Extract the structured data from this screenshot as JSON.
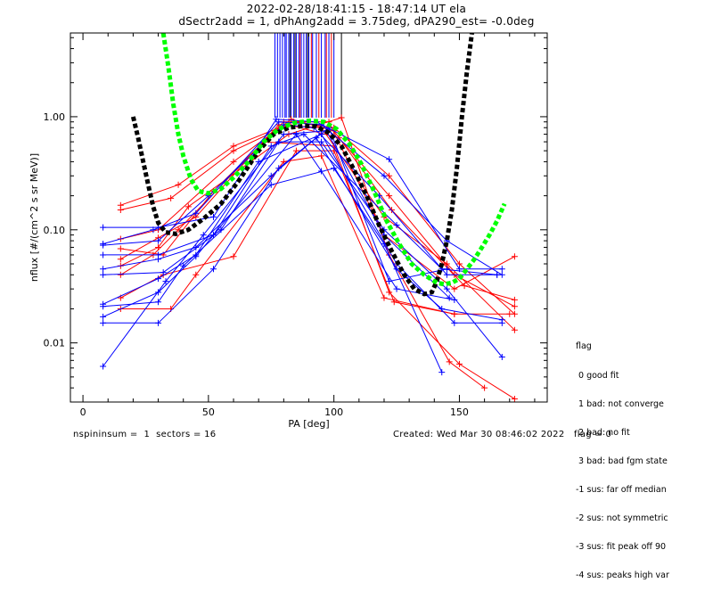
{
  "title_line1": "2022-02-28/18:41:15 - 18:47:14 UT ela",
  "title_line2": "dSectr2add = 1, dPhAng2add = 3.75deg, dPA290_est=  -0.0deg",
  "footer_left": "nspininsum =  1  sectors = 16",
  "footer_right": "Created: Wed Mar 30 08:46:02 2022   flag = 0",
  "legend": {
    "title": "flag",
    "items": [
      " 0 good fit",
      " 1 bad: not converge",
      " 2 bad: no fit",
      " 3 bad: bad fgm state",
      "-1 sus: far off median",
      "-2 sus: not symmetric",
      "-3 sus: fit peak off 90",
      "-4 sus: peaks high var"
    ]
  },
  "colors": {
    "red": "#ff0000",
    "blue": "#0000ff",
    "black": "#000000",
    "green": "#00ff00"
  },
  "chart_data": {
    "type": "line",
    "xlabel": "PA [deg]",
    "ylabel": "nflux [#/(cm^2 s sr MeV)]",
    "xlim": [
      -5,
      185
    ],
    "ylim": [
      0.003,
      5.5
    ],
    "yscale": "log",
    "x_ticks": [
      0,
      50,
      100,
      150
    ],
    "y_ticks": [
      0.01,
      0.1,
      1.0
    ],
    "y_tick_labels": [
      "0.01",
      "0.10",
      "1.00"
    ],
    "series": [
      {
        "color": "red",
        "x": [
          15,
          38,
          60,
          84,
          100,
          122,
          150,
          172
        ],
        "y": [
          0.165,
          0.25,
          0.55,
          0.9,
          0.8,
          0.3,
          0.05,
          0.018
        ]
      },
      {
        "color": "red",
        "x": [
          15,
          35,
          60,
          82,
          102,
          122,
          148,
          172
        ],
        "y": [
          0.15,
          0.19,
          0.5,
          0.85,
          0.65,
          0.2,
          0.04,
          0.021
        ]
      },
      {
        "color": "red",
        "x": [
          15,
          30,
          60,
          83,
          100,
          123,
          152,
          172
        ],
        "y": [
          0.083,
          0.1,
          0.4,
          0.95,
          0.75,
          0.15,
          0.032,
          0.024
        ]
      },
      {
        "color": "red",
        "x": [
          15,
          32,
          52,
          80,
          98,
          120,
          148,
          172
        ],
        "y": [
          0.068,
          0.06,
          0.22,
          0.9,
          0.9,
          0.09,
          0.03,
          0.058
        ]
      },
      {
        "color": "red",
        "x": [
          15,
          30,
          45,
          78,
          95,
          120,
          145,
          172
        ],
        "y": [
          0.055,
          0.085,
          0.13,
          0.85,
          0.8,
          0.13,
          0.05,
          0.013
        ]
      },
      {
        "color": "red",
        "x": [
          15,
          30,
          42,
          82,
          103,
          122,
          146,
          160
        ],
        "y": [
          0.048,
          0.07,
          0.16,
          0.7,
          0.98,
          0.06,
          0.0068,
          0.004
        ]
      },
      {
        "color": "red",
        "x": [
          15,
          28,
          38,
          72,
          100,
          122,
          150,
          172
        ],
        "y": [
          0.04,
          0.06,
          0.1,
          0.6,
          0.55,
          0.028,
          0.0065,
          0.0032
        ]
      },
      {
        "color": "red",
        "x": [
          15,
          32,
          60,
          85,
          100,
          124,
          148,
          170
        ],
        "y": [
          0.025,
          0.04,
          0.058,
          0.5,
          0.5,
          0.023,
          0.018,
          0.018
        ]
      },
      {
        "color": "red",
        "x": [
          15,
          35,
          45,
          80,
          95,
          120,
          148
        ],
        "y": [
          0.02,
          0.02,
          0.04,
          0.4,
          0.45,
          0.025,
          0.018
        ]
      },
      {
        "color": "blue",
        "x": [
          8,
          30,
          52,
          77,
          93,
          122,
          150,
          167
        ],
        "y": [
          0.105,
          0.105,
          0.13,
          0.95,
          0.9,
          0.42,
          0.045,
          0.045
        ]
      },
      {
        "color": "blue",
        "x": [
          8,
          28,
          45,
          78,
          95,
          120,
          145,
          167
        ],
        "y": [
          0.075,
          0.1,
          0.14,
          0.9,
          0.85,
          0.3,
          0.08,
          0.04
        ]
      },
      {
        "color": "blue",
        "x": [
          8,
          30,
          50,
          80,
          92,
          118,
          145,
          165
        ],
        "y": [
          0.073,
          0.08,
          0.2,
          0.85,
          0.8,
          0.2,
          0.04,
          0.04
        ]
      },
      {
        "color": "blue",
        "x": [
          8,
          30,
          52,
          75,
          88,
          125,
          143,
          165
        ],
        "y": [
          0.06,
          0.06,
          0.09,
          0.55,
          0.7,
          0.11,
          0.045,
          0.04
        ]
      },
      {
        "color": "blue",
        "x": [
          8,
          30,
          45,
          75,
          93,
          125,
          143,
          167
        ],
        "y": [
          0.045,
          0.055,
          0.07,
          0.3,
          0.65,
          0.045,
          0.02,
          0.016
        ]
      },
      {
        "color": "blue",
        "x": [
          8,
          32,
          55,
          78,
          95,
          120,
          145,
          167
        ],
        "y": [
          0.04,
          0.042,
          0.1,
          0.6,
          0.6,
          0.1,
          0.03,
          0.0075
        ]
      },
      {
        "color": "blue",
        "x": [
          8,
          30,
          45,
          70,
          95,
          125,
          148,
          167
        ],
        "y": [
          0.022,
          0.037,
          0.06,
          0.4,
          0.7,
          0.05,
          0.015,
          0.015
        ]
      },
      {
        "color": "blue",
        "x": [
          8,
          30,
          40,
          75,
          100,
          120,
          143
        ],
        "y": [
          0.021,
          0.023,
          0.048,
          0.25,
          0.35,
          0.075,
          0.0055
        ]
      },
      {
        "color": "blue",
        "x": [
          8,
          30,
          45,
          85,
          95,
          125,
          148
        ],
        "y": [
          0.017,
          0.028,
          0.058,
          0.7,
          0.33,
          0.03,
          0.024
        ]
      },
      {
        "color": "blue",
        "x": [
          8,
          30,
          52,
          78,
          98,
          122,
          145
        ],
        "y": [
          0.015,
          0.015,
          0.045,
          0.35,
          0.8,
          0.035,
          0.045
        ]
      },
      {
        "color": "blue",
        "x": [
          8,
          33,
          48,
          80,
          97,
          120,
          146
        ],
        "y": [
          0.0062,
          0.035,
          0.09,
          0.7,
          0.75,
          0.09,
          0.025
        ]
      }
    ],
    "fits": [
      {
        "color": "black",
        "x": [
          20,
          22,
          24,
          26,
          28,
          30,
          33,
          37,
          42,
          48,
          55,
          62,
          70,
          76,
          82,
          88,
          93,
          98,
          103,
          108,
          113,
          118,
          123,
          128,
          132,
          136,
          139,
          141,
          143,
          145,
          147,
          149,
          151,
          153,
          155
        ],
        "y": [
          1.0,
          0.65,
          0.4,
          0.25,
          0.16,
          0.115,
          0.095,
          0.092,
          0.1,
          0.125,
          0.17,
          0.27,
          0.5,
          0.7,
          0.8,
          0.83,
          0.82,
          0.72,
          0.55,
          0.34,
          0.2,
          0.11,
          0.065,
          0.04,
          0.03,
          0.027,
          0.028,
          0.035,
          0.05,
          0.08,
          0.15,
          0.35,
          1.0,
          2.5,
          5.5
        ]
      },
      {
        "color": "green",
        "x": [
          32,
          34,
          36,
          38,
          40,
          43,
          46,
          50,
          55,
          60,
          66,
          72,
          78,
          84,
          90,
          96,
          101,
          106,
          111,
          116,
          121,
          126,
          131,
          136,
          141,
          144,
          147,
          150,
          153,
          156,
          159,
          162,
          165,
          168
        ],
        "y": [
          5.5,
          2.8,
          1.3,
          0.7,
          0.45,
          0.28,
          0.22,
          0.21,
          0.23,
          0.29,
          0.4,
          0.6,
          0.78,
          0.88,
          0.92,
          0.9,
          0.78,
          0.58,
          0.38,
          0.22,
          0.12,
          0.075,
          0.05,
          0.04,
          0.034,
          0.033,
          0.034,
          0.037,
          0.045,
          0.055,
          0.07,
          0.09,
          0.12,
          0.17
        ]
      }
    ],
    "vlines": [
      {
        "color": "blue",
        "x": [
          76.5,
          77.5,
          78.5,
          79.5,
          80.5,
          81,
          82,
          83,
          84,
          85,
          86,
          87,
          88,
          89,
          90,
          91.5,
          93,
          95,
          96.5,
          98,
          100
        ]
      },
      {
        "color": "red",
        "x": [
          86.5,
          91,
          94,
          97,
          99
        ]
      },
      {
        "color": "black",
        "x": [
          82.5,
          84.5,
          89.5,
          103
        ]
      }
    ]
  }
}
